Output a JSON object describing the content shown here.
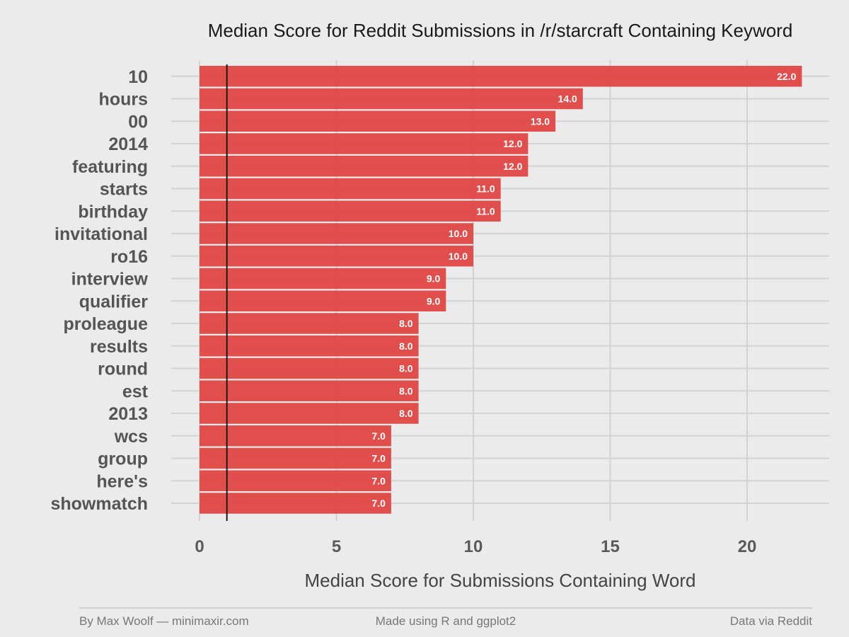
{
  "chart_data": {
    "type": "bar",
    "orientation": "horizontal",
    "title": "Median Score for Reddit Submissions in /r/starcraft Containing Keyword",
    "xlabel": "Median Score for Submissions Containing Word",
    "ylabel": "",
    "categories": [
      "10",
      "hours",
      "00",
      "2014",
      "featuring",
      "starts",
      "birthday",
      "invitational",
      "ro16",
      "interview",
      "qualifier",
      "proleague",
      "results",
      "round",
      "est",
      "2013",
      "wcs",
      "group",
      "here's",
      "showmatch"
    ],
    "values": [
      22.0,
      14.0,
      13.0,
      12.0,
      12.0,
      11.0,
      11.0,
      10.0,
      10.0,
      9.0,
      9.0,
      8.0,
      8.0,
      8.0,
      8.0,
      8.0,
      7.0,
      7.0,
      7.0,
      7.0
    ],
    "value_labels": [
      "22.0",
      "14.0",
      "13.0",
      "12.0",
      "12.0",
      "11.0",
      "11.0",
      "10.0",
      "10.0",
      "9.0",
      "9.0",
      "8.0",
      "8.0",
      "8.0",
      "8.0",
      "8.0",
      "7.0",
      "7.0",
      "7.0",
      "7.0"
    ],
    "x_ticks": [
      0,
      5,
      10,
      15,
      20
    ],
    "x_tick_labels": [
      "0",
      "5",
      "10",
      "15",
      "20"
    ],
    "xlim": [
      0,
      23
    ],
    "reference_line": 1,
    "grid": true,
    "legend": "none",
    "colors": {
      "bar": "#e04745",
      "background": "#ebebeb",
      "grid": "#d3d3d3",
      "reference_line": "#1a1a1a"
    }
  },
  "footer": {
    "left": "By Max Woolf — minimaxir.com",
    "center": "Made using R and ggplot2",
    "right": "Data via Reddit"
  }
}
